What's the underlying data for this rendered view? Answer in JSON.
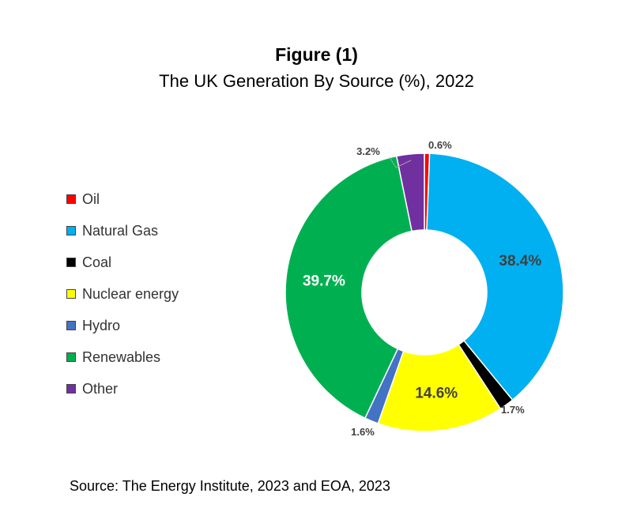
{
  "figure": {
    "title": "Figure (1)",
    "subtitle": "The UK Generation By Source (%), 2022",
    "source": "Source: The Energy Institute, 2023 and EOA, 2023"
  },
  "chart_data": {
    "type": "pie",
    "donut": true,
    "legend_position": "left",
    "slices": [
      {
        "name": "Oil",
        "value": 0.6,
        "label": "0.6%",
        "color": "#ff0000"
      },
      {
        "name": "Natural Gas",
        "value": 38.4,
        "label": "38.4%",
        "color": "#00b0f0"
      },
      {
        "name": "Coal",
        "value": 1.7,
        "label": "1.7%",
        "color": "#000000"
      },
      {
        "name": "Nuclear energy",
        "value": 14.6,
        "label": "14.6%",
        "color": "#ffff00"
      },
      {
        "name": "Hydro",
        "value": 1.6,
        "label": "1.6%",
        "color": "#4472c4"
      },
      {
        "name": "Renewables",
        "value": 39.7,
        "label": "39.7%",
        "color": "#00b050"
      },
      {
        "name": "Other",
        "value": 3.2,
        "label": "3.2%",
        "color": "#7030a0"
      }
    ]
  }
}
